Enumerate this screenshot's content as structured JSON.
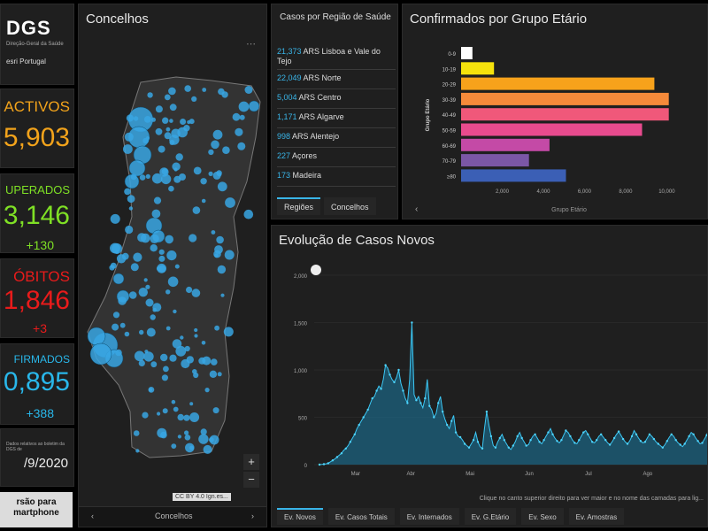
{
  "logo": {
    "title": "DGS",
    "subtitle": "Direção-Geral da Saúde",
    "partner": "esri Portugal"
  },
  "stats": {
    "ativos": {
      "label": "ACTIVOS",
      "value": "5,903",
      "color": "#f2a31b"
    },
    "recuperados": {
      "label": "UPERADOS",
      "value": "3,146",
      "delta": "+130",
      "color": "#7fe025"
    },
    "obitos": {
      "label": "ÓBITOS",
      "value": "1,846",
      "delta": "+3",
      "color": "#e81b1b"
    },
    "confirmados": {
      "label": "FIRMADOS",
      "value": "0,895",
      "delta": "+388",
      "color": "#29b7ea"
    }
  },
  "date_box": {
    "small": "Dados relativos ao boletim da DGS de",
    "date": "/9/2020"
  },
  "mobile_button": {
    "line1": "rsão para",
    "line2": "martphone"
  },
  "map": {
    "title": "Concelhos",
    "attribution": "CC BY 4.0 Ign.es...",
    "zoom_in": "+",
    "zoom_out": "−",
    "tab_label": "Concelhos",
    "more": "⋯"
  },
  "regions": {
    "title": "Casos por Região de Saúde",
    "items": [
      {
        "value": "21,373",
        "name": "ARS Lisboa e Vale do Tejo"
      },
      {
        "value": "22,049",
        "name": "ARS Norte"
      },
      {
        "value": "5,004",
        "name": "ARS Centro"
      },
      {
        "value": "1,171",
        "name": "ARS Algarve"
      },
      {
        "value": "998",
        "name": "ARS Alentejo"
      },
      {
        "value": "227",
        "name": "Açores"
      },
      {
        "value": "173",
        "name": "Madeira"
      }
    ],
    "tabs": [
      "Regiões",
      "Concelhos"
    ]
  },
  "age_chart": {
    "title": "Confirmados por Grupo Etário",
    "chart_data": {
      "type": "bar",
      "orientation": "horizontal",
      "categories": [
        "0-9",
        "10-19",
        "20-29",
        "30-39",
        "40-49",
        "50-59",
        "60-69",
        "70-79",
        "≥80"
      ],
      "values": [
        550,
        1600,
        9400,
        10100,
        10100,
        8800,
        4300,
        3300,
        5100
      ],
      "colors": [
        "#ffffff",
        "#f5e20c",
        "#f7a21b",
        "#f58a3a",
        "#f0587a",
        "#e84b8e",
        "#c44aa6",
        "#7b57a6",
        "#3b5fb5"
      ],
      "xticks": [
        "2,000",
        "4,000",
        "6,000",
        "8,000",
        "10,000"
      ],
      "xlim": [
        0,
        10500
      ],
      "xlabel": "Grupo Etário",
      "ylabel": "Grupo Etário"
    }
  },
  "evolution": {
    "title": "Evolução de Casos Novos",
    "note": "Clique no canto superior direito para ver maior e no nome das camadas para lig...",
    "tabs": [
      "Ev. Novos",
      "Ev. Casos Totais",
      "Ev. Internados",
      "Ev. G.Etário",
      "Ev. Sexo",
      "Ev. Amostras"
    ],
    "chart_data": {
      "type": "area",
      "yticks": [
        "2,000",
        "1,500",
        "1,000",
        "500",
        "0"
      ],
      "ylim": [
        0,
        2000
      ],
      "months": [
        "Mar",
        "Abr",
        "Mai",
        "Jun",
        "Jul",
        "Ago"
      ],
      "series": [
        {
          "values": [
            0,
            2,
            5,
            8,
            15,
            30,
            45,
            60,
            80,
            100,
            120,
            150,
            170,
            200,
            240,
            280,
            320,
            380,
            420,
            460,
            500,
            540,
            580,
            640,
            700,
            720,
            780,
            830,
            800,
            900,
            1050,
            1020,
            950,
            900,
            870,
            920,
            1000,
            860,
            780,
            700,
            650,
            900,
            1500,
            740,
            680,
            720,
            650,
            600,
            700,
            900,
            620,
            580,
            500,
            540,
            650,
            720,
            560,
            480,
            420,
            380,
            460,
            520,
            340,
            300,
            290,
            260,
            220,
            200,
            180,
            220,
            260,
            340,
            240,
            190,
            170,
            380,
            560,
            420,
            300,
            200,
            180,
            240,
            280,
            320,
            260,
            220,
            180,
            160,
            200,
            240,
            300,
            340,
            280,
            240,
            200,
            210,
            260,
            300,
            320,
            280,
            240,
            220,
            260,
            300,
            340,
            380,
            320,
            280,
            250,
            230,
            260,
            310,
            360,
            340,
            300,
            260,
            230,
            220,
            260,
            300,
            340,
            360,
            320,
            280,
            240,
            230,
            260,
            300,
            320,
            290,
            260,
            230,
            210,
            240,
            280,
            320,
            350,
            310,
            270,
            240,
            220,
            250,
            300,
            360,
            320,
            280,
            250,
            230,
            240,
            280,
            320,
            300,
            270,
            240,
            220,
            200,
            180,
            210,
            250,
            290,
            320,
            300,
            260,
            230,
            210,
            190,
            220,
            260,
            300,
            340,
            320,
            280,
            250,
            220,
            230,
            270,
            310,
            380
          ]
        }
      ]
    }
  }
}
